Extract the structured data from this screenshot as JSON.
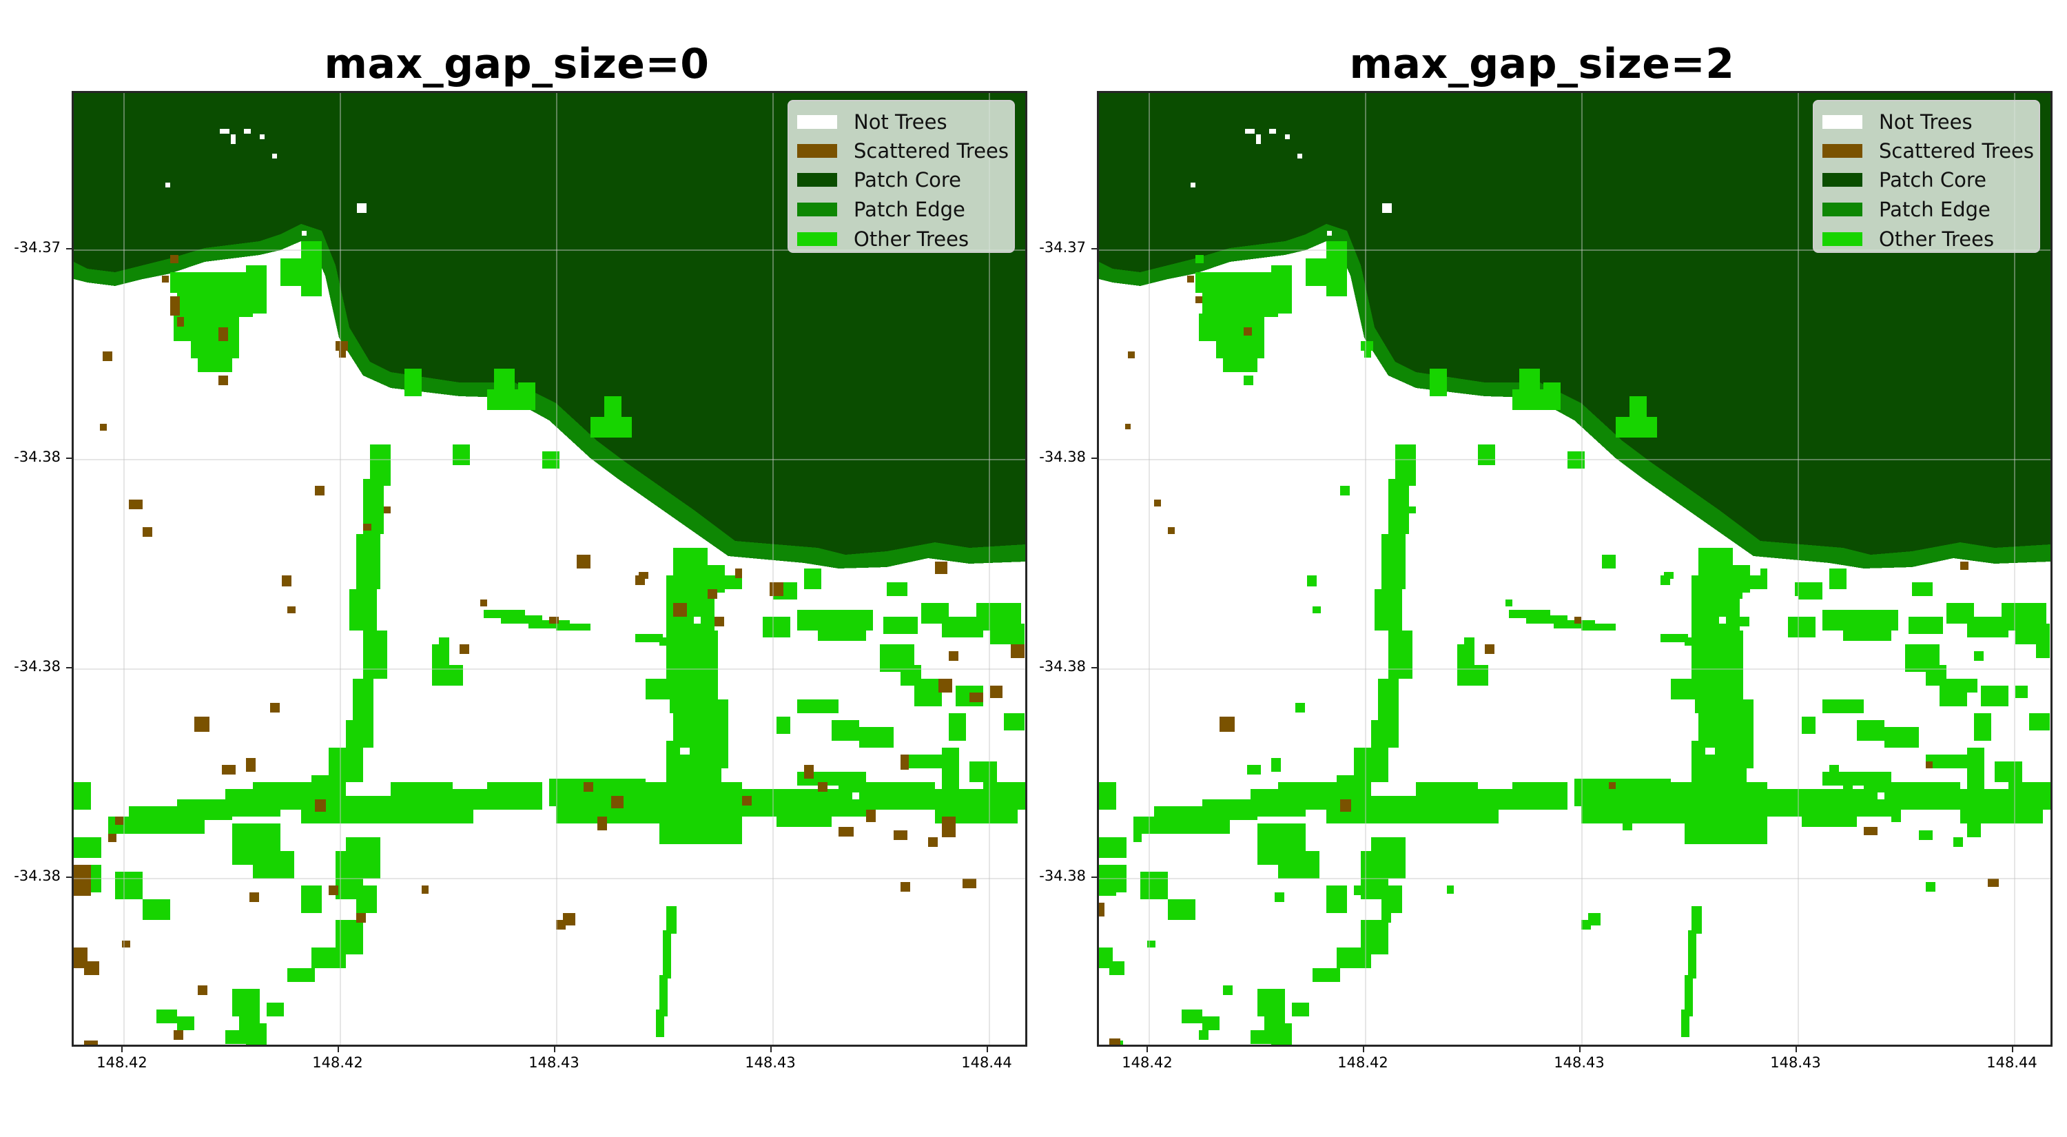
{
  "figure": {
    "panels": [
      {
        "title": "max_gap_size=0"
      },
      {
        "title": "max_gap_size=2"
      }
    ]
  },
  "legend": {
    "items": [
      {
        "label": "Not Trees",
        "color": "#ffffff"
      },
      {
        "label": "Scattered Trees",
        "color": "#7a5200"
      },
      {
        "label": "Patch Core",
        "color": "#0a4d00"
      },
      {
        "label": "Patch Edge",
        "color": "#0e8704"
      },
      {
        "label": "Other Trees",
        "color": "#17d400"
      }
    ]
  },
  "axes": {
    "x_ticks": [
      "148.42",
      "148.42",
      "148.43",
      "148.43",
      "148.44"
    ],
    "y_ticks": [
      "-34.37",
      "-34.38",
      "-34.38",
      "-34.38"
    ]
  },
  "chart_data": {
    "type": "heatmap",
    "title": [
      "max_gap_size=0",
      "max_gap_size=2"
    ],
    "xlabel": "",
    "ylabel": "",
    "x_tick_labels": [
      "148.42",
      "148.42",
      "148.43",
      "148.43",
      "148.44"
    ],
    "y_tick_labels": [
      "-34.37",
      "-34.38",
      "-34.38",
      "-34.38"
    ],
    "categories": [
      "Not Trees",
      "Scattered Trees",
      "Patch Core",
      "Patch Edge",
      "Other Trees"
    ],
    "colors": [
      "#ffffff",
      "#7a5200",
      "#0a4d00",
      "#0e8704",
      "#17d400"
    ],
    "legend_position": "upper right",
    "grid": true,
    "panels": [
      {
        "name": "max_gap_size=0",
        "note": "Brown scattered-tree pixels present throughout open areas"
      },
      {
        "name": "max_gap_size=2",
        "note": "Most scattered-tree pixels reclassified as Other Trees; few remain brown"
      }
    ]
  }
}
